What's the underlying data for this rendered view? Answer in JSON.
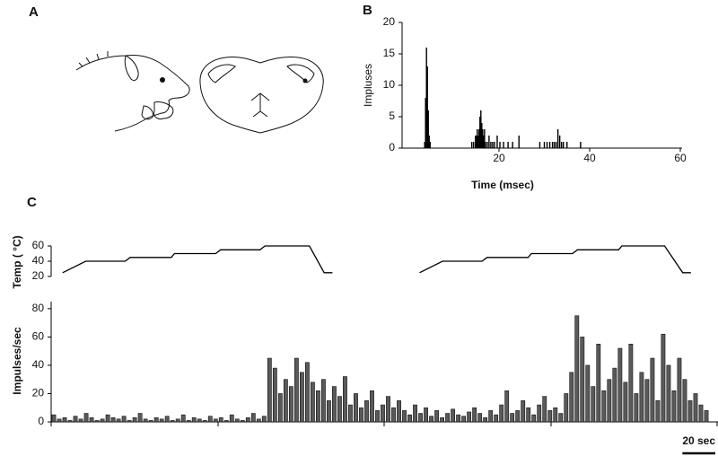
{
  "panel_labels": [
    "A",
    "B",
    "C"
  ],
  "chart_data": [
    {
      "type": "histogram",
      "ylabel": "Impluses",
      "xlabel": "Time (msec)",
      "x": [
        3.6,
        3.8,
        4,
        4.2,
        4.4,
        4.6,
        4.8,
        14,
        14.4,
        14.8,
        15,
        15.2,
        15.4,
        15.6,
        15.8,
        16,
        16.2,
        16.4,
        16.6,
        16.8,
        17,
        17.4,
        17.8,
        18.2,
        18.6,
        19,
        19.6,
        20.2,
        21,
        22,
        23,
        24.4,
        29,
        30,
        30.6,
        31.2,
        31.8,
        32.2,
        32.6,
        33,
        33.4,
        33.8,
        34.2,
        35,
        38
      ],
      "values": [
        1,
        8,
        16,
        13,
        6,
        2,
        1,
        1,
        1,
        2,
        2,
        3,
        2,
        3,
        5,
        6,
        4,
        3,
        2,
        3,
        1,
        1,
        2,
        1,
        1,
        1,
        2,
        1,
        1,
        1,
        1,
        2,
        1,
        1,
        1,
        1,
        1,
        1,
        1,
        3,
        2,
        1,
        1,
        1,
        1
      ],
      "xlim": [
        0,
        60
      ],
      "xticks": [
        20,
        40,
        60
      ],
      "ylim": [
        0,
        20
      ],
      "yticks": [
        0,
        5,
        10,
        15,
        20
      ],
      "color": "#000000"
    },
    {
      "type": "line",
      "ylabel": "Temp ( °C)",
      "x": [
        7,
        21,
        45,
        48,
        73,
        75,
        100,
        103,
        127,
        130,
        157,
        166,
        171,
        null,
        224,
        238,
        262,
        265,
        290,
        292,
        317,
        320,
        345,
        347,
        373,
        384,
        389
      ],
      "values": [
        25,
        40,
        40,
        45,
        45,
        50,
        50,
        55,
        55,
        60,
        60,
        25,
        25,
        null,
        25,
        40,
        40,
        45,
        45,
        50,
        50,
        55,
        55,
        60,
        60,
        25,
        25
      ],
      "xlim": [
        0,
        400
      ],
      "ylim": [
        20,
        60
      ],
      "yticks": [
        20,
        40,
        60
      ],
      "color": "#000000"
    },
    {
      "type": "bar",
      "ylabel": "Impulses/sec",
      "values": [
        5,
        2,
        3,
        1,
        4,
        2,
        6,
        3,
        1,
        2,
        5,
        3,
        2,
        4,
        1,
        3,
        6,
        2,
        1,
        3,
        2,
        4,
        1,
        2,
        5,
        1,
        3,
        2,
        1,
        4,
        2,
        3,
        1,
        5,
        2,
        1,
        3,
        6,
        2,
        4,
        45,
        38,
        20,
        30,
        25,
        45,
        35,
        42,
        28,
        22,
        30,
        15,
        25,
        18,
        32,
        12,
        20,
        10,
        15,
        22,
        8,
        12,
        18,
        10,
        15,
        8,
        5,
        12,
        6,
        10,
        4,
        8,
        3,
        6,
        9,
        5,
        4,
        7,
        10,
        6,
        3,
        8,
        5,
        12,
        22,
        6,
        8,
        15,
        10,
        5,
        12,
        18,
        8,
        10,
        6,
        20,
        35,
        75,
        60,
        40,
        25,
        55,
        22,
        30,
        38,
        52,
        28,
        55,
        20,
        35,
        30,
        45,
        15,
        62,
        40,
        22,
        45,
        30,
        15,
        20,
        12,
        8
      ],
      "xlim": [
        0,
        400
      ],
      "ylim": [
        0,
        85
      ],
      "yticks": [
        0,
        20,
        40,
        60,
        80
      ],
      "color": "#5a5a5a",
      "scale_bar": {
        "value": 20,
        "label": "20 sec"
      }
    }
  ]
}
